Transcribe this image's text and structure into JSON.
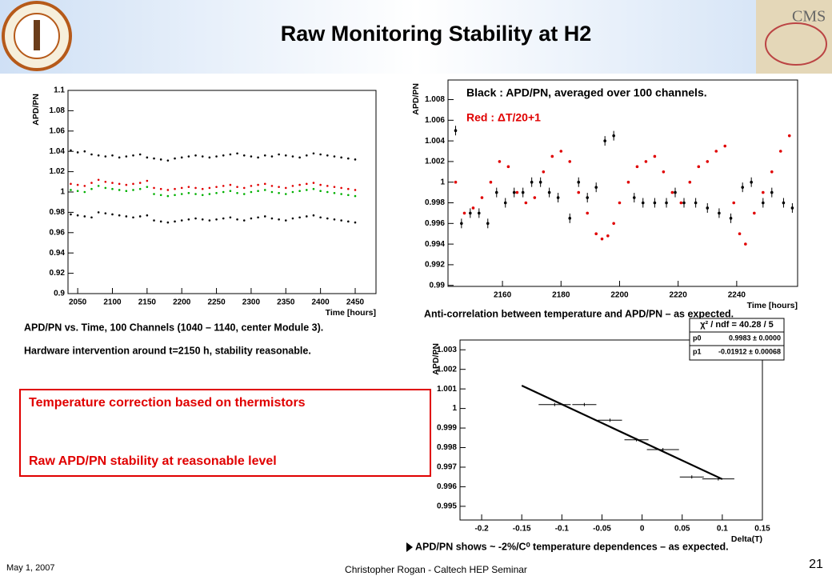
{
  "slide": {
    "title": "Raw Monitoring Stability at H2",
    "captions": [
      "APD/PN vs. Time, 100 Channels (1040 – 1140, center Module 3).",
      "Hardware intervention around t=2150 h, stability reasonable."
    ],
    "box_lines": [
      "Temperature correction based on thermistors",
      "Raw APD/PN stability at reasonable level"
    ],
    "anticorrelation": "Anti-correlation  between temperature and APD/PN – as expected.",
    "bullet": "APD/PN shows ~ -2%/C⁰ temperature dependences – as expected.",
    "date": "May 1, 2007",
    "footer": "Christopher Rogan - Caltech HEP Seminar",
    "page": "21"
  },
  "chart_data": [
    {
      "type": "scatter",
      "x_label": "Time [hours]",
      "y_label": "APD/PN",
      "xlim": [
        2036,
        2480
      ],
      "ylim": [
        0.9,
        1.1
      ],
      "xticks": [
        2050,
        2100,
        2150,
        2200,
        2250,
        2300,
        2350,
        2400,
        2450
      ],
      "yticks": [
        0.9,
        0.92,
        0.94,
        0.96,
        0.98,
        1,
        1.02,
        1.04,
        1.06,
        1.08,
        1.1
      ],
      "x": [
        2040,
        2050,
        2060,
        2070,
        2080,
        2090,
        2100,
        2110,
        2120,
        2130,
        2140,
        2150,
        2160,
        2170,
        2180,
        2190,
        2200,
        2210,
        2220,
        2230,
        2240,
        2250,
        2260,
        2270,
        2280,
        2290,
        2300,
        2310,
        2320,
        2330,
        2340,
        2350,
        2360,
        2370,
        2380,
        2390,
        2400,
        2410,
        2420,
        2430,
        2440,
        2450
      ],
      "series": [
        {
          "color": "#000000",
          "marker": "dot",
          "values": [
            1.041,
            1.039,
            1.04,
            1.037,
            1.036,
            1.035,
            1.036,
            1.034,
            1.035,
            1.036,
            1.037,
            1.034,
            1.033,
            1.032,
            1.031,
            1.033,
            1.034,
            1.035,
            1.036,
            1.035,
            1.034,
            1.035,
            1.036,
            1.037,
            1.038,
            1.036,
            1.035,
            1.034,
            1.036,
            1.035,
            1.037,
            1.036,
            1.035,
            1.034,
            1.036,
            1.038,
            1.037,
            1.036,
            1.035,
            1.034,
            1.033,
            1.032
          ]
        },
        {
          "color": "#e00000",
          "marker": "dot",
          "values": [
            1.008,
            1.007,
            1.006,
            1.009,
            1.012,
            1.01,
            1.009,
            1.008,
            1.007,
            1.008,
            1.009,
            1.011,
            1.004,
            1.003,
            1.002,
            1.003,
            1.004,
            1.005,
            1.004,
            1.003,
            1.004,
            1.005,
            1.006,
            1.007,
            1.005,
            1.004,
            1.006,
            1.007,
            1.008,
            1.006,
            1.005,
            1.004,
            1.006,
            1.007,
            1.008,
            1.009,
            1.007,
            1.006,
            1.005,
            1.004,
            1.003,
            1.002
          ]
        },
        {
          "color": "#00b000",
          "marker": "dot",
          "values": [
            1.002,
            1.001,
            1.0,
            1.003,
            1.006,
            1.004,
            1.003,
            1.002,
            1.001,
            1.002,
            1.003,
            1.005,
            0.998,
            0.997,
            0.996,
            0.997,
            0.998,
            0.999,
            0.998,
            0.997,
            0.998,
            0.999,
            1.0,
            1.001,
            0.999,
            0.998,
            1.0,
            1.001,
            1.002,
            1.0,
            0.999,
            0.998,
            1.0,
            1.001,
            1.002,
            1.003,
            1.001,
            1.0,
            0.999,
            0.998,
            0.997,
            0.996
          ]
        },
        {
          "color": "#000000",
          "marker": "dot",
          "values": [
            0.978,
            0.977,
            0.976,
            0.975,
            0.98,
            0.979,
            0.978,
            0.977,
            0.976,
            0.975,
            0.976,
            0.977,
            0.972,
            0.971,
            0.97,
            0.971,
            0.972,
            0.973,
            0.974,
            0.973,
            0.972,
            0.973,
            0.974,
            0.975,
            0.973,
            0.972,
            0.974,
            0.975,
            0.976,
            0.974,
            0.973,
            0.972,
            0.974,
            0.975,
            0.976,
            0.977,
            0.975,
            0.974,
            0.973,
            0.972,
            0.971,
            0.97
          ]
        }
      ]
    },
    {
      "type": "scatter",
      "x_label": "Time [hours]",
      "y_label": "APD/PN",
      "annotations": [
        "Black : APD/PN, averaged over 100 channels.",
        "Red : ΔT/20+1"
      ],
      "xlim": [
        2141.4,
        2260.8
      ],
      "ylim": [
        0.9899,
        1.0099
      ],
      "xticks": [
        2160,
        2180,
        2200,
        2220,
        2240
      ],
      "yticks": [
        0.99,
        0.992,
        0.994,
        0.996,
        0.998,
        1,
        1.002,
        1.004,
        1.006,
        1.008
      ],
      "series": [
        {
          "color": "#000000",
          "marker": "cross",
          "x": [
            2144,
            2146,
            2149,
            2152,
            2155,
            2158,
            2161,
            2164,
            2167,
            2170,
            2173,
            2176,
            2179,
            2183,
            2186,
            2189,
            2192,
            2195,
            2198,
            2205,
            2208,
            2212,
            2216,
            2219,
            2222,
            2226,
            2230,
            2234,
            2238,
            2242,
            2245,
            2249,
            2252,
            2256,
            2259
          ],
          "values": [
            1.005,
            0.996,
            0.997,
            0.997,
            0.996,
            0.999,
            0.998,
            0.999,
            0.999,
            1.0,
            1.0,
            0.999,
            0.9985,
            0.9965,
            1.0,
            0.9985,
            0.9995,
            1.004,
            1.0045,
            0.9985,
            0.998,
            0.998,
            0.998,
            0.999,
            0.998,
            0.998,
            0.9975,
            0.997,
            0.9965,
            0.9995,
            1.0,
            0.998,
            0.999,
            0.998,
            0.9975
          ]
        },
        {
          "color": "#e00000",
          "marker": "dot",
          "x": [
            2144,
            2147,
            2150,
            2153,
            2156,
            2159,
            2162,
            2165,
            2168,
            2171,
            2174,
            2177,
            2180,
            2183,
            2186,
            2189,
            2192,
            2194,
            2196,
            2198,
            2200,
            2203,
            2206,
            2209,
            2212,
            2215,
            2218,
            2221,
            2224,
            2227,
            2230,
            2233,
            2236,
            2239,
            2241,
            2243,
            2246,
            2249,
            2252,
            2255,
            2258
          ],
          "values": [
            1.0,
            0.997,
            0.9975,
            0.9985,
            1.0,
            1.002,
            1.0015,
            0.999,
            0.998,
            0.9985,
            1.001,
            1.0025,
            1.003,
            1.002,
            0.999,
            0.997,
            0.995,
            0.9945,
            0.9948,
            0.996,
            0.998,
            1.0,
            1.0015,
            1.002,
            1.0025,
            1.001,
            0.999,
            0.998,
            1.0,
            1.0015,
            1.002,
            1.003,
            1.0035,
            0.998,
            0.995,
            0.994,
            0.997,
            0.999,
            1.001,
            1.003,
            1.0045
          ]
        }
      ]
    },
    {
      "type": "scatter",
      "x_label": "Delta(T)",
      "y_label": "APD/PN",
      "xlim": [
        -0.227,
        0.15
      ],
      "ylim": [
        0.9943,
        1.0035
      ],
      "xticks": [
        -0.2,
        -0.15,
        -0.1,
        -0.05,
        0,
        0.05,
        0.1,
        0.15
      ],
      "yticks": [
        0.995,
        0.996,
        0.997,
        0.998,
        0.999,
        1,
        1.001,
        1.002,
        1.003
      ],
      "color": "#000000",
      "x": [
        -0.109,
        -0.072,
        -0.04,
        -0.007,
        0.026,
        0.062,
        0.095
      ],
      "values": [
        1.0002,
        1.0002,
        0.9994,
        0.9984,
        0.9979,
        0.9965,
        0.9964
      ],
      "xerr": [
        0.02,
        0.015,
        0.015,
        0.015,
        0.02,
        0.015,
        0.02
      ],
      "stats": {
        "title": "χ² / ndf = 40.28 / 5",
        "rows": [
          {
            "name": "p0",
            "value": 0.9983,
            "label": "0.9983 ± 0.0000"
          },
          {
            "name": "p1",
            "value": -0.01912,
            "label": "-0.01912 ± 0.00068"
          }
        ]
      },
      "fit": {
        "range": [
          -0.15,
          0.1
        ]
      }
    }
  ]
}
